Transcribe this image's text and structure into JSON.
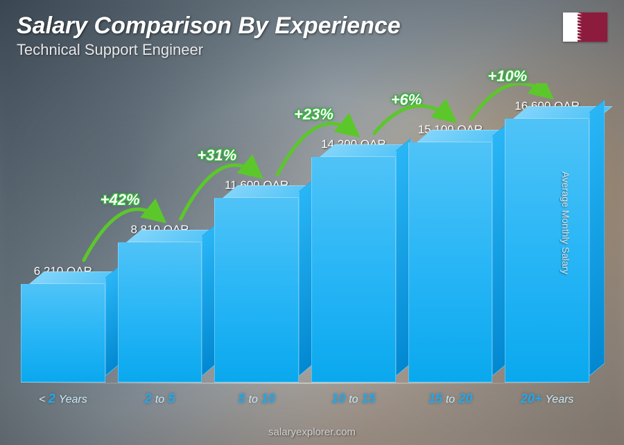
{
  "header": {
    "title": "Salary Comparison By Experience",
    "subtitle": "Technical Support Engineer"
  },
  "flag": {
    "country": "Qatar",
    "white_color": "#ffffff",
    "maroon_color": "#8d1b3d"
  },
  "ylabel": "Average Monthly Salary",
  "footer": "salaryexplorer.com",
  "chart": {
    "type": "bar",
    "currency": "QAR",
    "max_value": 16600,
    "bar_color_top": "#4fc3f7",
    "bar_color_bottom": "#0aa8ee",
    "bar_side_color": "#0288d1",
    "arrow_color": "#5cc72b",
    "pct_text_color": "#ffffff",
    "pct_outline_color": "#3cb043",
    "xlabel_color": "#1ea8f0",
    "value_label_color": "#ffffff",
    "background_gradient": [
      "#5a6c7d",
      "#c9b8a8"
    ],
    "title_fontsize": 34,
    "subtitle_fontsize": 22,
    "value_fontsize": 17,
    "xlabel_fontsize": 18,
    "pct_fontsize": 22,
    "bars": [
      {
        "category_prefix": "<",
        "category_num": "2",
        "category_suffix": "Years",
        "value": 6210,
        "value_label": "6,210 QAR",
        "pct_from_prev": null
      },
      {
        "category_prefix": "",
        "category_num": "2",
        "category_mid": "to",
        "category_num2": "5",
        "category_suffix": "",
        "value": 8810,
        "value_label": "8,810 QAR",
        "pct_from_prev": "+42%"
      },
      {
        "category_prefix": "",
        "category_num": "5",
        "category_mid": "to",
        "category_num2": "10",
        "category_suffix": "",
        "value": 11600,
        "value_label": "11,600 QAR",
        "pct_from_prev": "+31%"
      },
      {
        "category_prefix": "",
        "category_num": "10",
        "category_mid": "to",
        "category_num2": "15",
        "category_suffix": "",
        "value": 14200,
        "value_label": "14,200 QAR",
        "pct_from_prev": "+23%"
      },
      {
        "category_prefix": "",
        "category_num": "15",
        "category_mid": "to",
        "category_num2": "20",
        "category_suffix": "",
        "value": 15100,
        "value_label": "15,100 QAR",
        "pct_from_prev": "+6%"
      },
      {
        "category_prefix": "",
        "category_num": "20+",
        "category_suffix": "Years",
        "value": 16600,
        "value_label": "16,600 QAR",
        "pct_from_prev": "+10%"
      }
    ]
  }
}
